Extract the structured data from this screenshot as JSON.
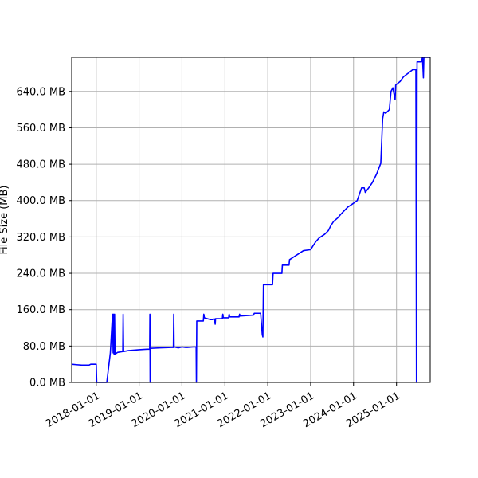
{
  "chart_data": {
    "type": "line",
    "title": "",
    "xlabel": "",
    "ylabel": "File Size (MB)",
    "x_axis": "date",
    "xlim": [
      "2017-06-06",
      "2025-10-15"
    ],
    "ylim": [
      0,
      715
    ],
    "grid": true,
    "line_color": "#0000ff",
    "x_ticks": [
      "2018-01-01",
      "2019-01-01",
      "2020-01-01",
      "2021-01-01",
      "2022-01-01",
      "2023-01-01",
      "2024-01-01",
      "2025-01-01"
    ],
    "y_ticks": [
      0,
      80,
      160,
      240,
      320,
      400,
      480,
      560,
      640
    ],
    "y_tick_labels": [
      "0.0 MB",
      "80.0 MB",
      "160.0 MB",
      "240.0 MB",
      "320.0 MB",
      "400.0 MB",
      "480.0 MB",
      "560.0 MB",
      "640.0 MB"
    ],
    "series": [
      {
        "points": [
          [
            "2017-06-06",
            40
          ],
          [
            "2017-07-15",
            39
          ],
          [
            "2017-09-01",
            38
          ],
          [
            "2017-11-01",
            38
          ],
          [
            "2017-11-15",
            40
          ],
          [
            "2018-01-01",
            40
          ],
          [
            "2018-01-05",
            0
          ],
          [
            "2018-04-01",
            0
          ],
          [
            "2018-05-01",
            65
          ],
          [
            "2018-05-20",
            150
          ],
          [
            "2018-05-25",
            65
          ],
          [
            "2018-05-29",
            150
          ],
          [
            "2018-06-02",
            62
          ],
          [
            "2018-06-06",
            150
          ],
          [
            "2018-06-10",
            62
          ],
          [
            "2018-07-01",
            66
          ],
          [
            "2018-08-15",
            68
          ],
          [
            "2018-08-18",
            150
          ],
          [
            "2018-08-22",
            68
          ],
          [
            "2018-10-01",
            70
          ],
          [
            "2019-01-01",
            72
          ],
          [
            "2019-03-10",
            73
          ],
          [
            "2019-04-01",
            73
          ],
          [
            "2019-04-03",
            150
          ],
          [
            "2019-04-05",
            0
          ],
          [
            "2019-04-07",
            75
          ],
          [
            "2019-07-01",
            76
          ],
          [
            "2019-10-01",
            77
          ],
          [
            "2019-10-20",
            77
          ],
          [
            "2019-10-23",
            150
          ],
          [
            "2019-10-26",
            78
          ],
          [
            "2019-12-01",
            76
          ],
          [
            "2020-01-01",
            78
          ],
          [
            "2020-02-01",
            77
          ],
          [
            "2020-02-15",
            77
          ],
          [
            "2020-04-05",
            78
          ],
          [
            "2020-05-01",
            78
          ],
          [
            "2020-05-03",
            0
          ],
          [
            "2020-05-06",
            135
          ],
          [
            "2020-07-01",
            135
          ],
          [
            "2020-07-05",
            150
          ],
          [
            "2020-07-10",
            142
          ],
          [
            "2020-09-01",
            138
          ],
          [
            "2020-09-15",
            138
          ],
          [
            "2020-10-01",
            140
          ],
          [
            "2020-10-10",
            128
          ],
          [
            "2020-10-13",
            140
          ],
          [
            "2020-12-10",
            140
          ],
          [
            "2020-12-14",
            150
          ],
          [
            "2020-12-18",
            142
          ],
          [
            "2021-02-01",
            142
          ],
          [
            "2021-02-06",
            150
          ],
          [
            "2021-02-10",
            144
          ],
          [
            "2021-05-01",
            144
          ],
          [
            "2021-05-06",
            150
          ],
          [
            "2021-05-10",
            146
          ],
          [
            "2021-09-01",
            148
          ],
          [
            "2021-09-08",
            152
          ],
          [
            "2021-11-01",
            152
          ],
          [
            "2021-11-15",
            105
          ],
          [
            "2021-11-20",
            100
          ],
          [
            "2021-11-25",
            215
          ],
          [
            "2022-02-10",
            215
          ],
          [
            "2022-02-15",
            240
          ],
          [
            "2022-05-01",
            240
          ],
          [
            "2022-05-05",
            258
          ],
          [
            "2022-07-01",
            258
          ],
          [
            "2022-07-05",
            270
          ],
          [
            "2022-11-01",
            290
          ],
          [
            "2023-01-01",
            292
          ],
          [
            "2023-01-20",
            300
          ],
          [
            "2023-02-15",
            310
          ],
          [
            "2023-03-15",
            318
          ],
          [
            "2023-05-01",
            326
          ],
          [
            "2023-06-01",
            334
          ],
          [
            "2023-06-20",
            344
          ],
          [
            "2023-07-15",
            354
          ],
          [
            "2023-08-20",
            362
          ],
          [
            "2023-09-15",
            370
          ],
          [
            "2023-10-15",
            378
          ],
          [
            "2023-11-15",
            386
          ],
          [
            "2023-12-20",
            392
          ],
          [
            "2024-02-01",
            400
          ],
          [
            "2024-03-10",
            428
          ],
          [
            "2024-04-01",
            428
          ],
          [
            "2024-04-10",
            418
          ],
          [
            "2024-05-15",
            430
          ],
          [
            "2024-06-10",
            440
          ],
          [
            "2024-07-15",
            458
          ],
          [
            "2024-08-20",
            482
          ],
          [
            "2024-09-05",
            580
          ],
          [
            "2024-09-15",
            595
          ],
          [
            "2024-10-01",
            592
          ],
          [
            "2024-11-01",
            600
          ],
          [
            "2024-11-15",
            640
          ],
          [
            "2024-12-01",
            648
          ],
          [
            "2024-12-20",
            622
          ],
          [
            "2024-12-25",
            654
          ],
          [
            "2025-02-01",
            662
          ],
          [
            "2025-03-01",
            672
          ],
          [
            "2025-04-10",
            680
          ],
          [
            "2025-05-20",
            688
          ],
          [
            "2025-06-15",
            688
          ],
          [
            "2025-06-20",
            0
          ],
          [
            "2025-06-25",
            705
          ],
          [
            "2025-08-01",
            705
          ],
          [
            "2025-08-10",
            715
          ],
          [
            "2025-08-18",
            670
          ],
          [
            "2025-08-22",
            715
          ],
          [
            "2025-10-15",
            715
          ]
        ]
      }
    ]
  }
}
